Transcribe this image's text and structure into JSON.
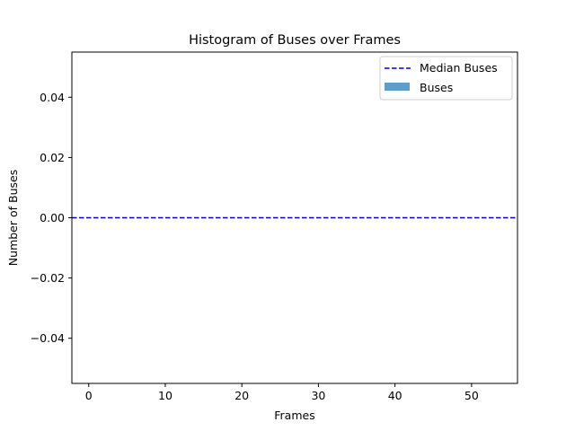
{
  "chart_data": {
    "type": "bar",
    "title": "Histogram of Buses over Frames",
    "xlabel": "Frames",
    "ylabel": "Number of Buses",
    "xlim": [
      -2.2,
      56
    ],
    "ylim": [
      -0.055,
      0.055
    ],
    "xticks": [
      0,
      10,
      20,
      30,
      40,
      50
    ],
    "xtick_labels": [
      "0",
      "10",
      "20",
      "30",
      "40",
      "50"
    ],
    "yticks": [
      0.04,
      0.02,
      0.0,
      -0.02,
      -0.04
    ],
    "ytick_labels": [
      "0.04",
      "0.02",
      "0.00",
      "−0.02",
      "−0.04"
    ],
    "grid": false,
    "legend_position": "top-right",
    "series": [
      {
        "name": "Median Buses",
        "kind": "hline",
        "style": "dashed",
        "color": "#0000cc",
        "value": 0.0
      },
      {
        "name": "Buses",
        "kind": "bar",
        "color": "#5f9ec8",
        "values": []
      }
    ]
  }
}
